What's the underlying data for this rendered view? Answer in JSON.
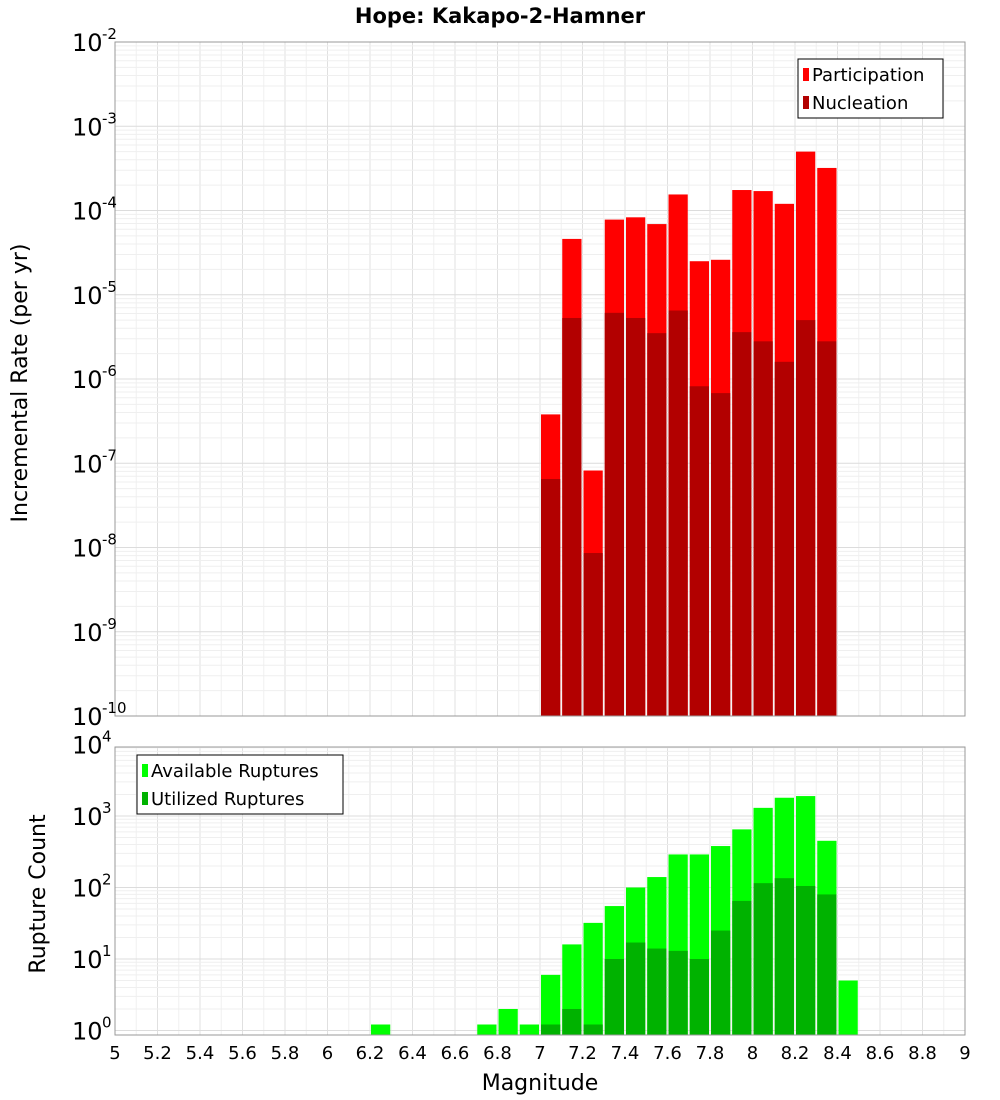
{
  "chart_data": [
    {
      "type": "bar",
      "title": "Hope: Kakapo-2-Hamner",
      "ylabel": "Incremental Rate (per yr)",
      "yscale": "log",
      "ylim_exp": [
        -10,
        -2
      ],
      "ytick_exps": [
        "-10",
        "-9",
        "-8",
        "-7",
        "-6",
        "-5",
        "-4",
        "-3",
        "-2"
      ],
      "ytick_base": "10",
      "legend_position": "top-right",
      "grid": true,
      "x": [
        7.05,
        7.15,
        7.25,
        7.35,
        7.45,
        7.55,
        7.65,
        7.75,
        7.85,
        7.95,
        8.05,
        8.15,
        8.25,
        8.35
      ],
      "series": [
        {
          "name": "Participation",
          "color": "#ff0000",
          "values": [
            3.8e-07,
            4.6e-05,
            8.2e-08,
            7.8e-05,
            8.3e-05,
            6.9e-05,
            0.000155,
            2.5e-05,
            2.6e-05,
            0.000175,
            0.00017,
            0.00012,
            0.0005,
            0.00032
          ]
        },
        {
          "name": "Nucleation",
          "color": "#b20000",
          "values": [
            6.5e-08,
            5.3e-06,
            8.6e-09,
            6.1e-06,
            5.3e-06,
            3.5e-06,
            6.5e-06,
            8.2e-07,
            6.8e-07,
            3.6e-06,
            2.8e-06,
            1.6e-06,
            5e-06,
            2.8e-06
          ]
        }
      ]
    },
    {
      "type": "bar",
      "xlabel": "Magnitude",
      "ylabel": "Rupture Count",
      "yscale": "log",
      "xlim": [
        5,
        9
      ],
      "xtick_labels": [
        "5",
        "5.2",
        "5.4",
        "5.6",
        "5.8",
        "6",
        "6.2",
        "6.4",
        "6.6",
        "6.8",
        "7",
        "7.2",
        "7.4",
        "7.6",
        "7.8",
        "8",
        "8.2",
        "8.4",
        "8.6",
        "8.8",
        "9"
      ],
      "ytick_exps": [
        "0",
        "1",
        "2",
        "3",
        "4"
      ],
      "ytick_base": "10",
      "legend_position": "top-left",
      "grid": true,
      "x": [
        6.25,
        6.75,
        6.85,
        6.95,
        7.05,
        7.15,
        7.25,
        7.35,
        7.45,
        7.55,
        7.65,
        7.75,
        7.85,
        7.95,
        8.05,
        8.15,
        8.25,
        8.35,
        8.45
      ],
      "series": [
        {
          "name": "Available Ruptures",
          "color": "#00ff00",
          "values": [
            1,
            1,
            2,
            1,
            6,
            16,
            32,
            55,
            100,
            140,
            290,
            290,
            380,
            650,
            1300,
            1800,
            1900,
            450,
            5
          ]
        },
        {
          "name": "Utilized Ruptures",
          "color": "#00b200",
          "values": [
            0,
            0,
            0,
            0,
            1,
            2,
            1,
            10,
            17,
            14,
            13,
            10,
            25,
            65,
            115,
            135,
            105,
            80,
            0
          ]
        }
      ]
    }
  ]
}
